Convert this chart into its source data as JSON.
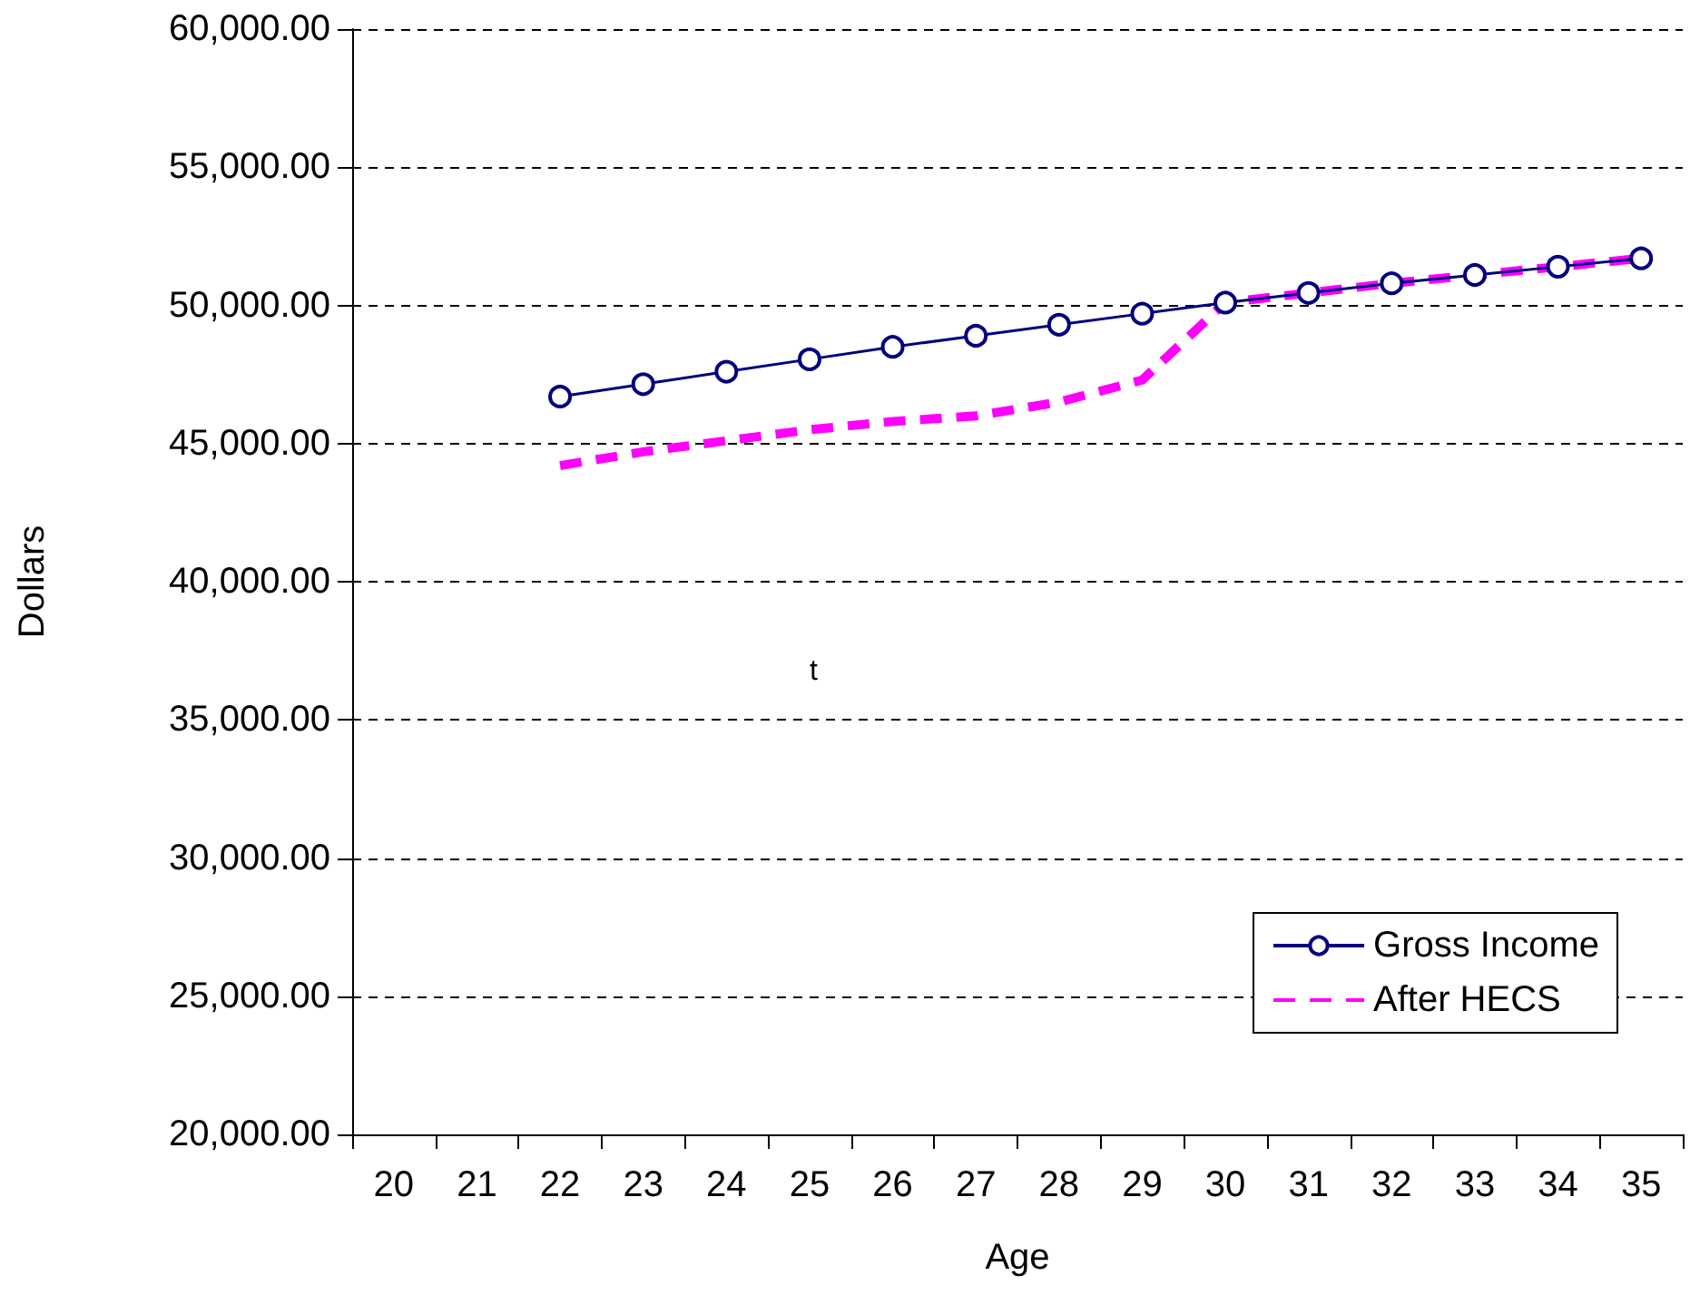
{
  "chart_data": {
    "type": "line",
    "xlabel": "Age",
    "ylabel": "Dollars",
    "categories": [
      "20",
      "21",
      "22",
      "23",
      "24",
      "25",
      "26",
      "27",
      "28",
      "29",
      "30",
      "31",
      "32",
      "33",
      "34",
      "35"
    ],
    "series": [
      {
        "name": "Gross Income",
        "color": "#000080",
        "marker": "circle",
        "line_style": "solid",
        "values": [
          null,
          null,
          46700,
          47150,
          47600,
          48050,
          48500,
          48900,
          49300,
          49700,
          50100,
          50450,
          50800,
          51100,
          51400,
          51700
        ]
      },
      {
        "name": "After HECS",
        "color": "#ff00ff",
        "marker": "none",
        "line_style": "dashed",
        "values": [
          null,
          null,
          44200,
          44700,
          45100,
          45500,
          45800,
          46000,
          46500,
          47300,
          50100,
          50450,
          50800,
          51100,
          51400,
          51700
        ]
      }
    ],
    "ylim": [
      20000,
      60000
    ],
    "yticks": [
      {
        "value": 20000,
        "label": "20,000.00"
      },
      {
        "value": 25000,
        "label": "25,000.00"
      },
      {
        "value": 30000,
        "label": "30,000.00"
      },
      {
        "value": 35000,
        "label": "35,000.00"
      },
      {
        "value": 40000,
        "label": "40,000.00"
      },
      {
        "value": 45000,
        "label": "45,000.00"
      },
      {
        "value": 50000,
        "label": "50,000.00"
      },
      {
        "value": 55000,
        "label": "55,000.00"
      },
      {
        "value": 60000,
        "label": "60,000.00"
      }
    ],
    "grid": "y",
    "legend": "bottom right",
    "annotations": [
      "t"
    ]
  }
}
